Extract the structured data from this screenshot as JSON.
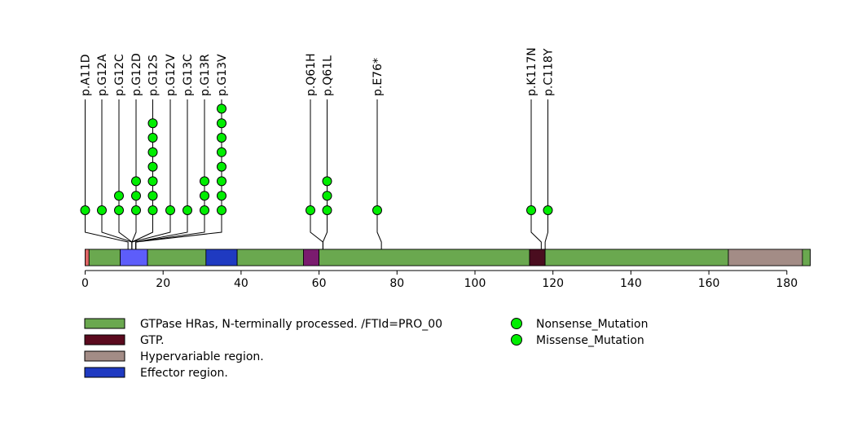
{
  "chart_data": {
    "type": "lollipop",
    "title": "",
    "xlabel": "",
    "ylabel": "",
    "protein_length": 186,
    "xlim": [
      0,
      186
    ],
    "ticks": [
      0,
      20,
      40,
      60,
      80,
      100,
      120,
      140,
      160,
      180
    ],
    "tick_labels": [
      "0",
      "20",
      "40",
      "60",
      "80",
      "100",
      "120",
      "140",
      "160",
      "180"
    ],
    "backbone_color": "#6aa84f",
    "regions": [
      {
        "start": 0,
        "end": 1,
        "color": "#e06666",
        "kind": "other"
      },
      {
        "start": 1,
        "end": 9,
        "color": "#6aa84f",
        "kind": "chain"
      },
      {
        "start": 9,
        "end": 16,
        "color": "#5d5dfa",
        "kind": "overlap"
      },
      {
        "start": 16,
        "end": 31,
        "color": "#6aa84f",
        "kind": "chain"
      },
      {
        "start": 31,
        "end": 39,
        "color": "#1f3ac1",
        "kind": "effector"
      },
      {
        "start": 39,
        "end": 56,
        "color": "#6aa84f",
        "kind": "chain"
      },
      {
        "start": 56,
        "end": 60,
        "color": "#7a1c6e",
        "kind": "gtp-overlap"
      },
      {
        "start": 60,
        "end": 114,
        "color": "#6aa84f",
        "kind": "chain"
      },
      {
        "start": 114,
        "end": 118,
        "color": "#4a0d1f",
        "kind": "gtp"
      },
      {
        "start": 118,
        "end": 165,
        "color": "#6aa84f",
        "kind": "chain"
      },
      {
        "start": 165,
        "end": 184,
        "color": "#a38c86",
        "kind": "hypervariable"
      },
      {
        "start": 184,
        "end": 186,
        "color": "#6aa84f",
        "kind": "chain"
      }
    ],
    "mutations": [
      {
        "label": "p.A11D",
        "pos": 11,
        "count": 1
      },
      {
        "label": "p.G12A",
        "pos": 12,
        "count": 1
      },
      {
        "label": "p.G12C",
        "pos": 12,
        "count": 2
      },
      {
        "label": "p.G12D",
        "pos": 12,
        "count": 3
      },
      {
        "label": "p.G12S",
        "pos": 12,
        "count": 7
      },
      {
        "label": "p.G12V",
        "pos": 12,
        "count": 1
      },
      {
        "label": "p.G13C",
        "pos": 13,
        "count": 1
      },
      {
        "label": "p.G13R",
        "pos": 13,
        "count": 3
      },
      {
        "label": "p.G13V",
        "pos": 13,
        "count": 8
      },
      {
        "label": "p.Q61H",
        "pos": 61,
        "count": 1
      },
      {
        "label": "p.Q61L",
        "pos": 61,
        "count": 3
      },
      {
        "label": "p.E76*",
        "pos": 76,
        "count": 1
      },
      {
        "label": "p.K117N",
        "pos": 117,
        "count": 1
      },
      {
        "label": "p.C118Y",
        "pos": 118,
        "count": 1
      }
    ],
    "point_color": "#00ee00",
    "legend": {
      "position": "bottom",
      "domains": [
        {
          "label": "GTPase HRas, N-terminally processed. /FTId=PRO_00",
          "color": "#6aa84f"
        },
        {
          "label": "GTP.",
          "color": "#5b0a1e"
        },
        {
          "label": "Hypervariable region.",
          "color": "#a38c86"
        },
        {
          "label": "Effector region.",
          "color": "#1f3ac1"
        }
      ],
      "mutation_types": [
        {
          "label": "Nonsense_Mutation",
          "color": "#00ee00"
        },
        {
          "label": "Missense_Mutation",
          "color": "#00ee00"
        }
      ]
    }
  }
}
